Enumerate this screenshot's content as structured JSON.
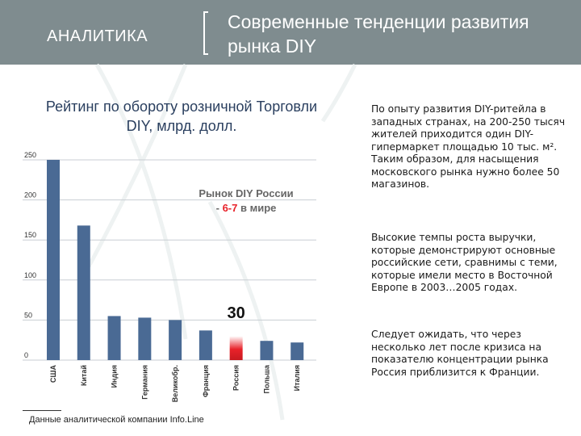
{
  "header": {
    "section_label": "АНАЛИТИКА",
    "title": "Современные тенденции развития рынка DIY"
  },
  "chart_title": "Рейтинг по обороту розничной Торговли DIY, млрд. долл.",
  "chart_data": {
    "type": "bar",
    "title": "Рейтинг по обороту розничной Торговли DIY, млрд. долл.",
    "categories": [
      "США",
      "Китай",
      "Индия",
      "Германия",
      "Великобр.",
      "Франция",
      "Россия",
      "Польша",
      "Италия"
    ],
    "values": [
      250,
      168,
      55,
      53,
      50,
      37,
      30,
      24,
      22
    ],
    "ylim": [
      0,
      250
    ],
    "yticks": [
      0,
      50,
      100,
      150,
      200,
      250
    ],
    "highlight_category": "Россия",
    "highlight_label": "30",
    "annotation": {
      "line1": "Рынок DIY России",
      "line2_prefix": "- ",
      "line2_highlight": "6-7",
      "line2_suffix": " в мире"
    },
    "bar_color": "#4a6a94",
    "highlight_color": "#e8222a"
  },
  "footnote": "Данные аналитической компании Info.Line",
  "paragraphs": [
    "По опыту развития DIY-ритейла в западных странах, на 200-250 тысяч жителей приходится один DIY-гипермаркет площадью 10 тыс. м². Таким образом, для насыщения московского рынка нужно более 50 магазинов.",
    "Высокие темпы роста выручки, которые демонстрируют основные российские сети, сравнимы с теми, которые имели место в Восточной Европе в 2003…2005 годах.",
    "Следует ожидать, что через несколько лет после кризиса на показателю концентрации рынка Россия приблизится к Франции."
  ]
}
